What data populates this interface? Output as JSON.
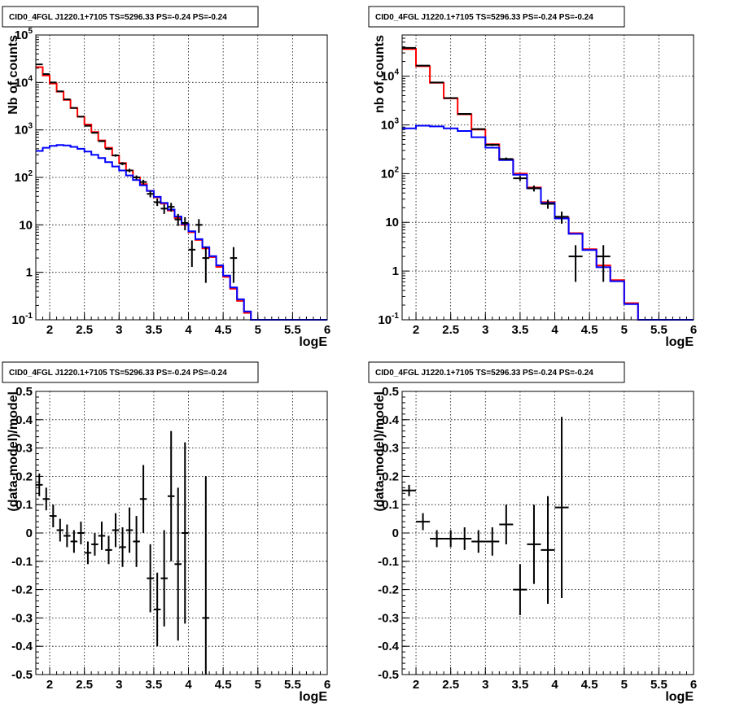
{
  "chart_data": [
    {
      "type": "line",
      "title": "CID0_4FGL J1220.1+7105 TS=5296.33 PS=-0.24 PS=-0.24",
      "xlabel": "logE",
      "ylabel": "Nb of counts",
      "xlim": [
        1.8,
        6.0
      ],
      "ylim": [
        0.1,
        100000
      ],
      "yscale": "log",
      "grid": true,
      "xticks": [
        "2",
        "2.5",
        "3",
        "3.5",
        "4",
        "4.5",
        "5",
        "5.5",
        "6"
      ],
      "yticks": [
        "10^-1",
        "1",
        "10",
        "10^2",
        "10^3",
        "10^4",
        "10^5"
      ],
      "bin_edges": [
        1.8,
        1.9,
        2.0,
        2.1,
        2.2,
        2.3,
        2.4,
        2.5,
        2.6,
        2.7,
        2.8,
        2.9,
        3.0,
        3.1,
        3.2,
        3.3,
        3.4,
        3.5,
        3.6,
        3.7,
        3.8,
        3.9,
        4.0,
        4.1,
        4.2,
        4.3,
        4.4,
        4.5,
        4.6,
        4.7,
        4.8,
        4.9,
        5.0,
        5.1,
        5.2,
        5.3,
        5.4,
        5.5,
        5.6,
        5.7,
        5.8,
        5.9,
        6.0
      ],
      "series": [
        {
          "color": "#ff0000",
          "style": "step",
          "values": [
            21000,
            14000,
            9500,
            6400,
            4300,
            2900,
            1900,
            1300,
            900,
            600,
            420,
            290,
            200,
            140,
            100,
            72,
            52,
            38,
            28,
            20,
            14,
            10,
            7,
            4.8,
            3.2,
            2.1,
            1.3,
            0.8,
            0.45,
            0.25,
            0.14,
            0.1,
            0.1,
            0.1,
            0.1,
            0.1,
            0.1,
            0.1,
            0.1,
            0.1,
            0.1,
            0.1
          ]
        },
        {
          "color": "#0000ff",
          "style": "step",
          "values": [
            360,
            420,
            460,
            480,
            470,
            440,
            400,
            350,
            300,
            255,
            210,
            170,
            140,
            110,
            88,
            68,
            52,
            39,
            29,
            21,
            15,
            10.5,
            7.3,
            5,
            3.4,
            2.2,
            1.4,
            0.85,
            0.48,
            0.27,
            0.15,
            0.1,
            0.1,
            0.1,
            0.1,
            0.1,
            0.1,
            0.1,
            0.1,
            0.1,
            0.1,
            0.1
          ]
        }
      ],
      "points": [
        {
          "x": 1.85,
          "y": 24000,
          "lo": 23800,
          "hi": 24200
        },
        {
          "x": 1.95,
          "y": 15000,
          "lo": 14800,
          "hi": 15200
        },
        {
          "x": 2.05,
          "y": 10000,
          "lo": 9900,
          "hi": 10100
        },
        {
          "x": 2.15,
          "y": 6500,
          "lo": 6400,
          "hi": 6600
        },
        {
          "x": 2.25,
          "y": 4400,
          "lo": 4330,
          "hi": 4470
        },
        {
          "x": 2.35,
          "y": 2900,
          "lo": 2850,
          "hi": 2950
        },
        {
          "x": 2.45,
          "y": 1900,
          "lo": 1860,
          "hi": 1940
        },
        {
          "x": 2.55,
          "y": 1220,
          "lo": 1190,
          "hi": 1250
        },
        {
          "x": 2.65,
          "y": 870,
          "lo": 840,
          "hi": 900
        },
        {
          "x": 2.75,
          "y": 580,
          "lo": 556,
          "hi": 604
        },
        {
          "x": 2.85,
          "y": 400,
          "lo": 380,
          "hi": 420
        },
        {
          "x": 2.95,
          "y": 290,
          "lo": 273,
          "hi": 307
        },
        {
          "x": 3.05,
          "y": 195,
          "lo": 181,
          "hi": 209
        },
        {
          "x": 3.15,
          "y": 140,
          "lo": 128,
          "hi": 152
        },
        {
          "x": 3.25,
          "y": 100,
          "lo": 90,
          "hi": 110
        },
        {
          "x": 3.35,
          "y": 80,
          "lo": 71,
          "hi": 89
        },
        {
          "x": 3.45,
          "y": 45,
          "lo": 38,
          "hi": 52
        },
        {
          "x": 3.55,
          "y": 30,
          "lo": 25,
          "hi": 36
        },
        {
          "x": 3.65,
          "y": 22,
          "lo": 17,
          "hi": 27
        },
        {
          "x": 3.75,
          "y": 24,
          "lo": 19,
          "hi": 29
        },
        {
          "x": 3.85,
          "y": 13,
          "lo": 9.5,
          "hi": 17
        },
        {
          "x": 3.95,
          "y": 11,
          "lo": 7.7,
          "hi": 14.5
        },
        {
          "x": 4.05,
          "y": 3,
          "lo": 1.3,
          "hi": 4.7
        },
        {
          "x": 4.15,
          "y": 10,
          "lo": 6.8,
          "hi": 13.2
        },
        {
          "x": 4.25,
          "y": 2,
          "lo": 0.6,
          "hi": 3.4
        },
        {
          "x": 4.65,
          "y": 2,
          "lo": 0.6,
          "hi": 3.4
        }
      ]
    },
    {
      "type": "line",
      "title": "CID0_4FGL J1220.1+7105 TS=5296.33 PS=-0.24 PS=-0.24",
      "xlabel": "logE",
      "ylabel": "nb of counts",
      "xlim": [
        1.8,
        6.0
      ],
      "ylim": [
        0.1,
        70000
      ],
      "yscale": "log",
      "grid": true,
      "xticks": [
        "2",
        "2.5",
        "3",
        "3.5",
        "4",
        "4.5",
        "5",
        "5.5",
        "6"
      ],
      "yticks": [
        "10^-1",
        "1",
        "10",
        "10^2",
        "10^3",
        "10^4"
      ],
      "bin_edges": [
        1.8,
        2.0,
        2.2,
        2.4,
        2.6,
        2.8,
        3.0,
        3.2,
        3.4,
        3.6,
        3.8,
        4.0,
        4.2,
        4.4,
        4.6,
        4.8,
        5.0,
        5.2,
        5.4,
        5.6,
        5.8,
        6.0
      ],
      "series": [
        {
          "color": "#ff0000",
          "style": "step",
          "values": [
            36000,
            16000,
            7300,
            3500,
            1650,
            800,
            400,
            195,
            100,
            52,
            26,
            12.5,
            6,
            2.8,
            1.3,
            0.65,
            0.22,
            0.1,
            0.1,
            0.1,
            0.1
          ]
        },
        {
          "color": "#0000ff",
          "style": "step",
          "values": [
            850,
            960,
            930,
            850,
            750,
            560,
            340,
            190,
            95,
            50,
            25,
            12,
            5.8,
            2.7,
            1.2,
            0.62,
            0.21,
            0.1,
            0.1,
            0.1,
            0.1
          ]
        }
      ],
      "points": [
        {
          "x": 1.9,
          "y": 38000,
          "lo": 37700,
          "hi": 38300
        },
        {
          "x": 2.1,
          "y": 16500,
          "lo": 16300,
          "hi": 16700
        },
        {
          "x": 2.3,
          "y": 7400,
          "lo": 7300,
          "hi": 7500
        },
        {
          "x": 2.5,
          "y": 3550,
          "lo": 3490,
          "hi": 3610
        },
        {
          "x": 2.7,
          "y": 1680,
          "lo": 1640,
          "hi": 1720
        },
        {
          "x": 2.9,
          "y": 820,
          "lo": 790,
          "hi": 850
        },
        {
          "x": 3.1,
          "y": 390,
          "lo": 370,
          "hi": 410
        },
        {
          "x": 3.3,
          "y": 200,
          "lo": 186,
          "hi": 214
        },
        {
          "x": 3.5,
          "y": 80,
          "lo": 71,
          "hi": 89
        },
        {
          "x": 3.7,
          "y": 50,
          "lo": 43,
          "hi": 57
        },
        {
          "x": 3.9,
          "y": 24,
          "lo": 19,
          "hi": 29
        },
        {
          "x": 4.1,
          "y": 13,
          "lo": 9.4,
          "hi": 16.6
        },
        {
          "x": 4.3,
          "y": 2,
          "lo": 0.6,
          "hi": 3.4
        },
        {
          "x": 4.7,
          "y": 2,
          "lo": 0.6,
          "hi": 3.4
        }
      ]
    },
    {
      "type": "scatter",
      "title": "CID0_4FGL J1220.1+7105 TS=5296.33 PS=-0.24 PS=-0.24",
      "xlabel": "logE",
      "ylabel": "(data-model)/model",
      "xlim": [
        1.8,
        6.0
      ],
      "ylim": [
        -0.5,
        0.5
      ],
      "grid": true,
      "xticks": [
        "2",
        "2.5",
        "3",
        "3.5",
        "4",
        "4.5",
        "5",
        "5.5",
        "6"
      ],
      "yticks": [
        "-0.5",
        "-0.4",
        "-0.3",
        "-0.2",
        "-0.1",
        "0",
        "0.1",
        "0.2",
        "0.3",
        "0.4",
        "0.5"
      ],
      "xerr": 0.05,
      "points": [
        {
          "x": 1.85,
          "y": 0.17,
          "err": 0.04
        },
        {
          "x": 1.95,
          "y": 0.12,
          "err": 0.04
        },
        {
          "x": 2.05,
          "y": 0.06,
          "err": 0.04
        },
        {
          "x": 2.15,
          "y": 0.01,
          "err": 0.04
        },
        {
          "x": 2.25,
          "y": -0.01,
          "err": 0.04
        },
        {
          "x": 2.35,
          "y": -0.03,
          "err": 0.04
        },
        {
          "x": 2.45,
          "y": 0.0,
          "err": 0.04
        },
        {
          "x": 2.55,
          "y": -0.07,
          "err": 0.04
        },
        {
          "x": 2.65,
          "y": -0.04,
          "err": 0.04
        },
        {
          "x": 2.75,
          "y": -0.01,
          "err": 0.05
        },
        {
          "x": 2.85,
          "y": -0.06,
          "err": 0.05
        },
        {
          "x": 2.95,
          "y": 0.01,
          "err": 0.06
        },
        {
          "x": 3.05,
          "y": -0.05,
          "err": 0.07
        },
        {
          "x": 3.15,
          "y": 0.01,
          "err": 0.08
        },
        {
          "x": 3.25,
          "y": -0.03,
          "err": 0.09
        },
        {
          "x": 3.35,
          "y": 0.12,
          "err": 0.12
        },
        {
          "x": 3.45,
          "y": -0.16,
          "err": 0.12
        },
        {
          "x": 3.55,
          "y": -0.27,
          "err": 0.13
        },
        {
          "x": 3.65,
          "y": -0.16,
          "err": 0.17
        },
        {
          "x": 3.75,
          "y": 0.13,
          "err": 0.23
        },
        {
          "x": 3.85,
          "y": -0.11,
          "err": 0.27
        },
        {
          "x": 3.95,
          "y": 0.0,
          "err": 0.32
        },
        {
          "x": 4.25,
          "y": -0.3,
          "err": 0.5
        }
      ]
    },
    {
      "type": "scatter",
      "title": "CID0_4FGL J1220.1+7105 TS=5296.33 PS=-0.24 PS=-0.24",
      "xlabel": "logE",
      "ylabel": "(data-model)/model",
      "xlim": [
        1.8,
        6.0
      ],
      "ylim": [
        -0.5,
        0.5
      ],
      "grid": true,
      "xticks": [
        "2",
        "2.5",
        "3",
        "3.5",
        "4",
        "4.5",
        "5",
        "5.5",
        "6"
      ],
      "yticks": [
        "-0.5",
        "-0.4",
        "-0.3",
        "-0.2",
        "-0.1",
        "0",
        "0.1",
        "0.2",
        "0.3",
        "0.4",
        "0.5"
      ],
      "xerr": 0.1,
      "points": [
        {
          "x": 1.9,
          "y": 0.15,
          "err": 0.02
        },
        {
          "x": 2.1,
          "y": 0.04,
          "err": 0.03
        },
        {
          "x": 2.3,
          "y": -0.02,
          "err": 0.03
        },
        {
          "x": 2.5,
          "y": -0.02,
          "err": 0.03
        },
        {
          "x": 2.7,
          "y": -0.02,
          "err": 0.04
        },
        {
          "x": 2.9,
          "y": -0.03,
          "err": 0.04
        },
        {
          "x": 3.1,
          "y": -0.03,
          "err": 0.05
        },
        {
          "x": 3.3,
          "y": 0.03,
          "err": 0.07
        },
        {
          "x": 3.5,
          "y": -0.2,
          "err": 0.09
        },
        {
          "x": 3.7,
          "y": -0.04,
          "err": 0.14
        },
        {
          "x": 3.9,
          "y": -0.06,
          "err": 0.19
        },
        {
          "x": 4.1,
          "y": 0.09,
          "err": 0.32
        }
      ]
    }
  ]
}
